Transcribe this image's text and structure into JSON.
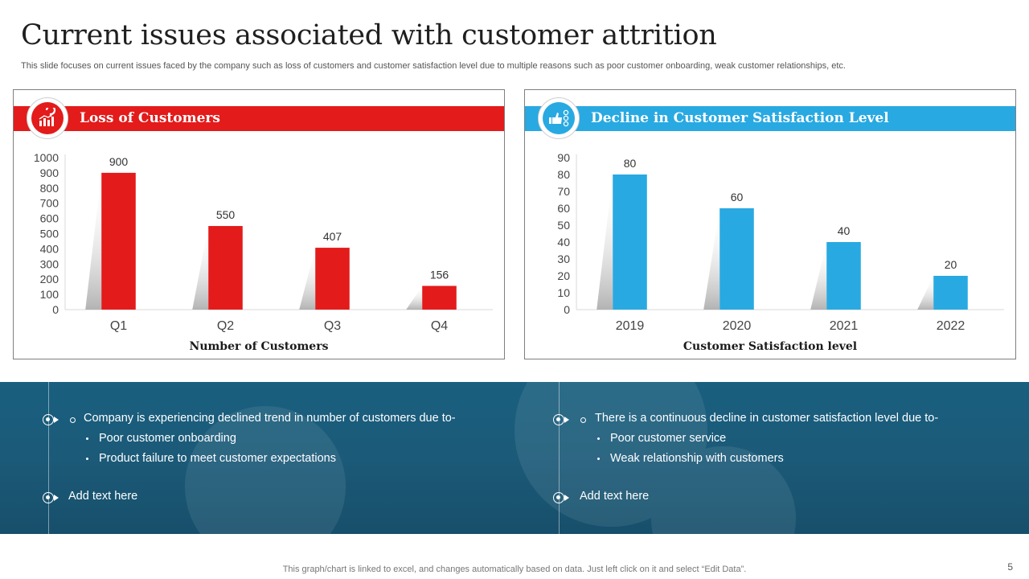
{
  "slide": {
    "title": "Current issues associated with customer attrition",
    "subtitle": "This slide focuses on current issues faced by the company such as loss of customers and customer satisfaction level due to multiple reasons such as poor customer onboarding, weak customer relationships, etc.",
    "footer": "This graph/chart is linked to excel,  and changes automatically based on data. Just left click on it and select “Edit Data”.",
    "page_number": "5"
  },
  "colors": {
    "red": "#e31b1b",
    "blue": "#29a9e1",
    "dark_band": "#1a5f7f"
  },
  "panels": {
    "left": {
      "title": "Loss of Customers",
      "icon": "customer-loss-chart-icon",
      "caption": "Number of Customers"
    },
    "right": {
      "title": "Decline in Customer Satisfaction Level",
      "icon": "satisfaction-feedback-icon",
      "caption": "Customer Satisfaction level"
    }
  },
  "chart_data": [
    {
      "type": "bar",
      "categories": [
        "Q1",
        "Q2",
        "Q3",
        "Q4"
      ],
      "values": [
        900,
        550,
        407,
        156
      ],
      "ylim": [
        0,
        1000
      ],
      "yticks": [
        0,
        100,
        200,
        300,
        400,
        500,
        600,
        700,
        800,
        900,
        1000
      ],
      "xlabel": "Number of Customers",
      "color": "#e31b1b",
      "grid": false
    },
    {
      "type": "bar",
      "categories": [
        "2019",
        "2020",
        "2021",
        "2022"
      ],
      "values": [
        80,
        60,
        40,
        20
      ],
      "ylim": [
        0,
        90
      ],
      "yticks": [
        0,
        10,
        20,
        30,
        40,
        50,
        60,
        70,
        80,
        90
      ],
      "xlabel": "Customer Satisfaction level",
      "color": "#29a9e1",
      "grid": false
    }
  ],
  "notes": {
    "left": {
      "main": "Company is experiencing declined trend in number of customers due to-",
      "subs": [
        "Poor customer onboarding",
        "Product failure to meet customer expectations"
      ],
      "extra": "Add text here"
    },
    "right": {
      "main": "There is a continuous decline in customer satisfaction level due to-",
      "subs": [
        "Poor customer service",
        "Weak relationship with customers"
      ],
      "extra": "Add text here"
    }
  }
}
